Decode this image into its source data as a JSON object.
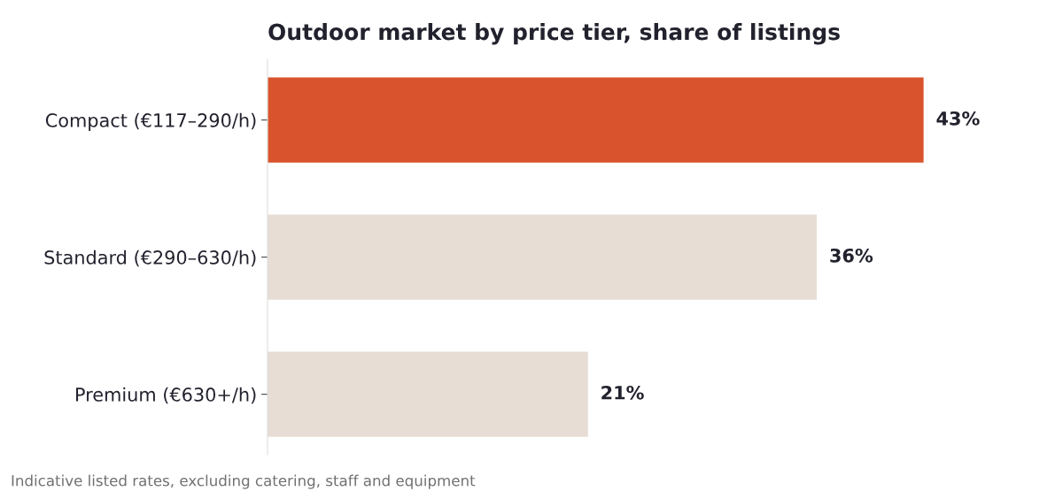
{
  "chart_data": {
    "type": "bar",
    "orientation": "horizontal",
    "title": "Outdoor market by price tier, share of listings",
    "categories": [
      "Compact (€117–290/h)",
      "Standard (€290–630/h)",
      "Premium (€630+/h)"
    ],
    "values": [
      43,
      36,
      21
    ],
    "colors": [
      "#d9532c",
      "#e7ddd4",
      "#e7ddd4"
    ],
    "value_labels": [
      "43%",
      "36%",
      "21%"
    ],
    "tick_labels": "y",
    "grid": false,
    "legend": false,
    "annotations": [
      "Indicative listed rates, excluding catering, staff and equipment"
    ]
  }
}
